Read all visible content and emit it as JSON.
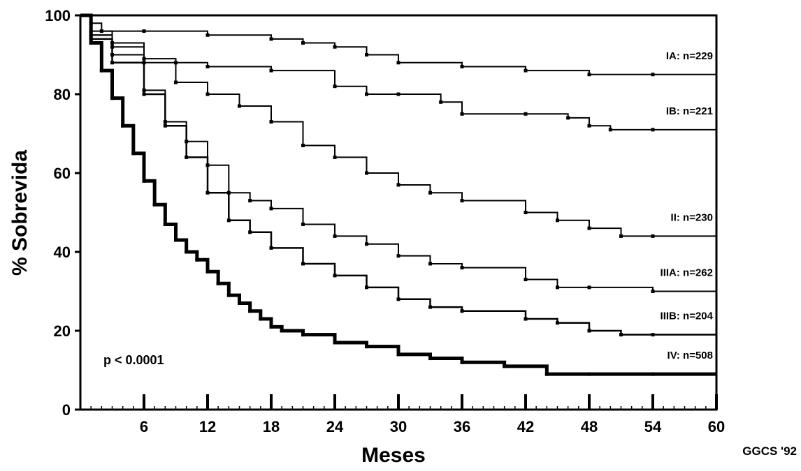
{
  "chart_data": {
    "type": "line",
    "title": "",
    "xlabel": "Meses",
    "ylabel": "% Sobrevida",
    "xlim": [
      0,
      60
    ],
    "ylim": [
      0,
      100
    ],
    "x_ticks": [
      6,
      12,
      18,
      24,
      30,
      36,
      42,
      48,
      54,
      60
    ],
    "y_ticks": [
      0,
      20,
      40,
      60,
      80,
      100
    ],
    "grid": false,
    "annotation": "p < 0.0001",
    "credit": "GGCS '92",
    "series": [
      {
        "name": "IA: n=229",
        "color": "#000000",
        "x": [
          0,
          1,
          2,
          6,
          12,
          18,
          21,
          24,
          27,
          30,
          36,
          42,
          48,
          54,
          60
        ],
        "y": [
          100,
          98,
          96,
          96,
          95,
          94,
          93,
          92,
          90,
          88,
          87,
          86,
          85,
          85,
          85
        ]
      },
      {
        "name": "IB: n=221",
        "color": "#000000",
        "x": [
          0,
          1,
          3,
          6,
          9,
          12,
          18,
          24,
          27,
          30,
          34,
          36,
          42,
          46,
          48,
          50,
          54,
          60
        ],
        "y": [
          100,
          96,
          93,
          89,
          88,
          87,
          86,
          82,
          80,
          80,
          78,
          75,
          75,
          74,
          72,
          71,
          71,
          71
        ]
      },
      {
        "name": "II: n=230",
        "color": "#000000",
        "x": [
          0,
          1,
          3,
          6,
          9,
          12,
          15,
          18,
          21,
          24,
          27,
          30,
          33,
          36,
          42,
          45,
          48,
          51,
          54,
          60
        ],
        "y": [
          100,
          95,
          92,
          88,
          83,
          80,
          77,
          73,
          67,
          64,
          60,
          57,
          55,
          53,
          50,
          48,
          46,
          44,
          44,
          44
        ]
      },
      {
        "name": "IIIA: n=262",
        "color": "#000000",
        "x": [
          0,
          1,
          3,
          6,
          8,
          10,
          12,
          14,
          16,
          18,
          21,
          24,
          27,
          30,
          33,
          36,
          42,
          45,
          48,
          54,
          60
        ],
        "y": [
          100,
          95,
          90,
          81,
          73,
          68,
          62,
          55,
          53,
          51,
          47,
          44,
          42,
          39,
          37,
          36,
          33,
          31,
          31,
          30,
          30
        ]
      },
      {
        "name": "IIIB: n=204",
        "color": "#000000",
        "x": [
          0,
          1,
          3,
          6,
          8,
          10,
          12,
          14,
          16,
          18,
          21,
          24,
          27,
          30,
          33,
          36,
          42,
          45,
          48,
          51,
          54,
          60
        ],
        "y": [
          100,
          94,
          88,
          80,
          72,
          64,
          55,
          48,
          45,
          41,
          37,
          34,
          31,
          28,
          26,
          25,
          23,
          22,
          20,
          19,
          19,
          19
        ]
      },
      {
        "name": "IV: n=508",
        "color": "#000000",
        "x": [
          0,
          1,
          2,
          3,
          4,
          5,
          6,
          7,
          8,
          9,
          10,
          11,
          12,
          13,
          14,
          15,
          16,
          17,
          18,
          19,
          21,
          24,
          27,
          30,
          33,
          36,
          40,
          44,
          48,
          54,
          60
        ],
        "y": [
          100,
          93,
          86,
          79,
          72,
          65,
          58,
          52,
          47,
          43,
          40,
          38,
          35,
          32,
          29,
          27,
          25,
          23,
          21,
          20,
          19,
          17,
          16,
          14,
          13,
          12,
          11,
          9,
          9,
          9,
          9
        ]
      }
    ]
  }
}
